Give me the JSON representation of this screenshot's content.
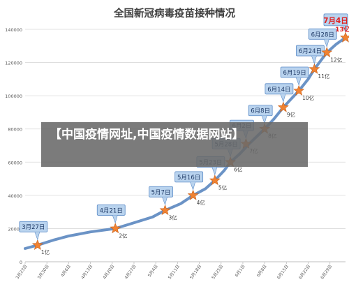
{
  "chart_data": {
    "type": "line",
    "title": "全国新冠病毒疫苗接种情况",
    "xlabel": "",
    "ylabel": "",
    "ylim": [
      0,
      140000
    ],
    "yticks": [
      0,
      20000,
      40000,
      60000,
      80000,
      100000,
      120000,
      140000
    ],
    "x_tick_labels": [
      "3月23日",
      "3月30日",
      "4月6日",
      "4月13日",
      "4月20日",
      "4月27日",
      "5月4日",
      "5月11日",
      "5月18日",
      "5月25日",
      "6月1日",
      "6月8日",
      "6月15日",
      "6月22日",
      "6月29日"
    ],
    "x_start": "2021-03-23",
    "x_end": "2021-07-04",
    "grid": true,
    "series": [
      {
        "name": "",
        "color": "#6b93c6",
        "points": [
          [
            "2021-03-23",
            8000
          ],
          [
            "2021-03-27",
            10000
          ],
          [
            "2021-04-01",
            13000
          ],
          [
            "2021-04-06",
            15500
          ],
          [
            "2021-04-13",
            18000
          ],
          [
            "2021-04-21",
            20000
          ],
          [
            "2021-04-27",
            23500
          ],
          [
            "2021-05-03",
            27000
          ],
          [
            "2021-05-07",
            31000
          ],
          [
            "2021-05-12",
            35000
          ],
          [
            "2021-05-16",
            40000
          ],
          [
            "2021-05-20",
            44000
          ],
          [
            "2021-05-23",
            49000
          ],
          [
            "2021-05-26",
            55000
          ],
          [
            "2021-05-28",
            60000
          ],
          [
            "2021-05-31",
            65000
          ],
          [
            "2021-06-03",
            71000
          ],
          [
            "2021-06-08",
            80000
          ],
          [
            "2021-06-11",
            86000
          ],
          [
            "2021-06-14",
            93000
          ],
          [
            "2021-06-17",
            99000
          ],
          [
            "2021-06-19",
            103000
          ],
          [
            "2021-06-22",
            110000
          ],
          [
            "2021-06-24",
            116000
          ],
          [
            "2021-06-26",
            121000
          ],
          [
            "2021-06-28",
            126000
          ],
          [
            "2021-07-01",
            131000
          ],
          [
            "2021-07-04",
            135000
          ]
        ]
      }
    ],
    "milestones": [
      {
        "date": "2021-03-27",
        "value": 10000,
        "date_label": "3月27日",
        "count_label": "1亿",
        "highlight": false
      },
      {
        "date": "2021-04-21",
        "value": 20000,
        "date_label": "4月21日",
        "count_label": "2亿",
        "highlight": false
      },
      {
        "date": "2021-05-07",
        "value": 31000,
        "date_label": "5月7日",
        "count_label": "3亿",
        "highlight": false
      },
      {
        "date": "2021-05-16",
        "value": 40000,
        "date_label": "5月16日",
        "count_label": "4亿",
        "highlight": false
      },
      {
        "date": "2021-05-23",
        "value": 49000,
        "date_label": "5月23日",
        "count_label": "5亿",
        "highlight": false
      },
      {
        "date": "2021-05-28",
        "value": 60000,
        "date_label": "5月28日",
        "count_label": "6亿",
        "highlight": false
      },
      {
        "date": "2021-06-02",
        "value": 71000,
        "date_label": "6月2日",
        "count_label": "7亿",
        "highlight": false
      },
      {
        "date": "2021-06-08",
        "value": 80000,
        "date_label": "6月8日",
        "count_label": "8亿",
        "highlight": false
      },
      {
        "date": "2021-06-14",
        "value": 93000,
        "date_label": "6月14日",
        "count_label": "9亿",
        "highlight": false
      },
      {
        "date": "2021-06-19",
        "value": 103000,
        "date_label": "6月19日",
        "count_label": "10亿",
        "highlight": false
      },
      {
        "date": "2021-06-24",
        "value": 116000,
        "date_label": "6月24日",
        "count_label": "11亿",
        "highlight": false
      },
      {
        "date": "2021-06-28",
        "value": 126000,
        "date_label": "6月28日",
        "count_label": "12亿",
        "highlight": false
      },
      {
        "date": "2021-07-04",
        "value": 135000,
        "date_label": "7月4日",
        "count_label": "13亿",
        "highlight": true
      }
    ]
  },
  "overlay": {
    "text": "【中国疫情网址,中国疫情数据网站】"
  },
  "colors": {
    "line": "#6b93c6",
    "star": "#f08232",
    "callout_fill": "#b9d3ee",
    "callout_stroke": "#5b8bc7",
    "highlight_text": "#e02020",
    "grid": "#d9d9d9",
    "axis_text": "#595959"
  }
}
